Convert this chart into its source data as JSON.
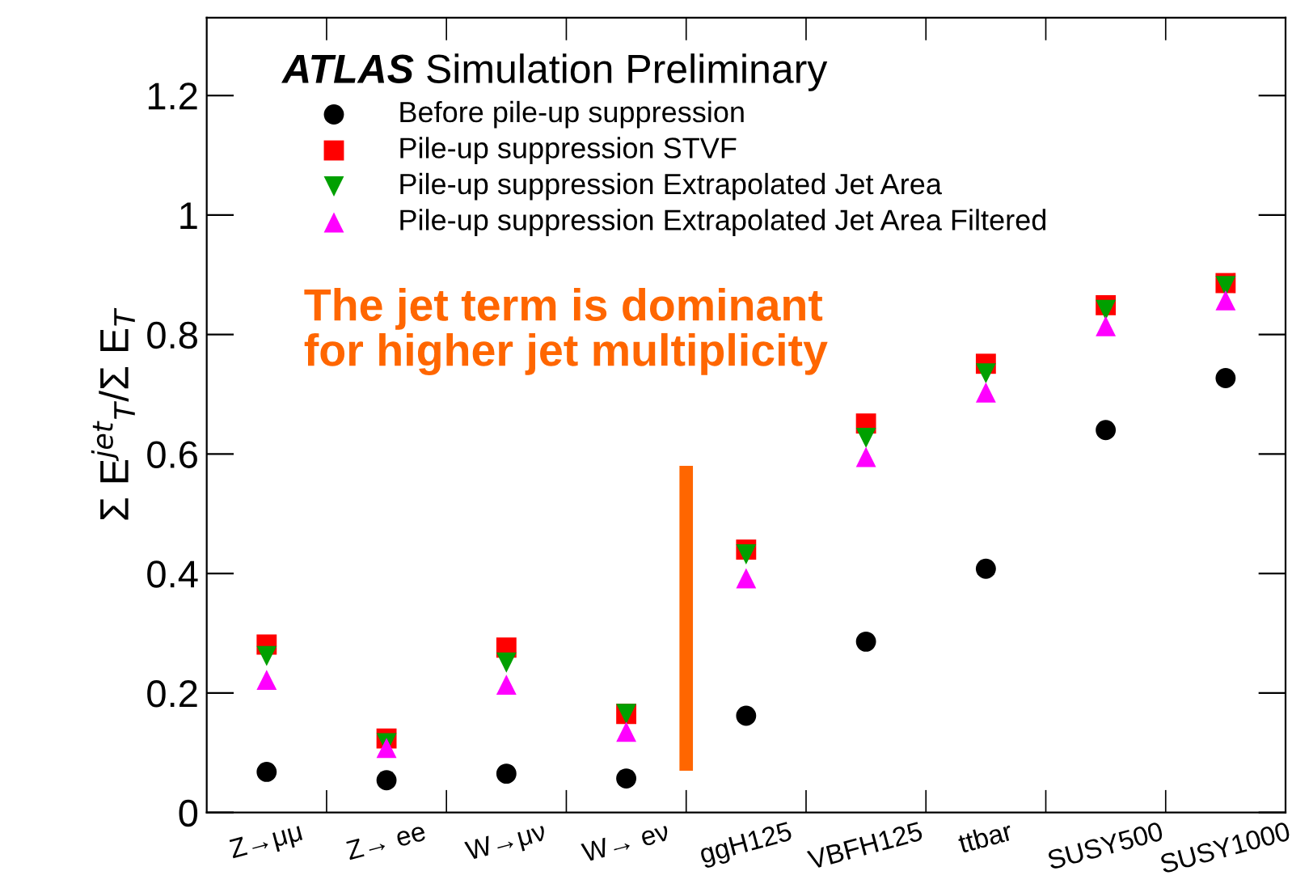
{
  "chart_data": {
    "type": "scatter",
    "title": "ATLAS Simulation Preliminary",
    "ylabel": "Σ E$^{jet}$$_{T}$/Σ E$_{T}$",
    "categories": [
      "Z→μμ",
      "Z→ ee",
      "W→μν",
      "W→ eν",
      "ggH125",
      "VBFH125",
      "ttbar",
      "SUSY500",
      "SUSY1000"
    ],
    "series": [
      {
        "name": "Before pile-up suppression",
        "color": "#000000",
        "marker": "circle",
        "values": [
          0.068,
          0.054,
          0.065,
          0.057,
          0.162,
          0.286,
          0.408,
          0.64,
          0.727
        ]
      },
      {
        "name": "Pile-up suppression STVF",
        "color": "#ff0000",
        "marker": "square",
        "values": [
          0.281,
          0.124,
          0.276,
          0.165,
          0.44,
          0.651,
          0.751,
          0.849,
          0.886
        ]
      },
      {
        "name": "Pile-up suppression Extrapolated Jet Area",
        "color": "#00a000",
        "marker": "triangle_down",
        "values": [
          0.262,
          0.116,
          0.251,
          0.165,
          0.432,
          0.627,
          0.735,
          0.841,
          0.881
        ]
      },
      {
        "name": "Pile-up suppression Extrapolated Jet Area Filtered",
        "color": "#ff00ff",
        "marker": "triangle",
        "values": [
          0.222,
          0.108,
          0.214,
          0.135,
          0.392,
          0.595,
          0.703,
          0.814,
          0.857
        ]
      }
    ],
    "annotations": [
      "The jet term is dominant\nfor higher jet multiplicity"
    ],
    "ylim": [
      0,
      1.33
    ],
    "yticks": [
      0,
      0.2,
      0.4,
      0.6,
      0.8,
      1,
      1.2
    ],
    "grid": false,
    "legend": "top left"
  }
}
